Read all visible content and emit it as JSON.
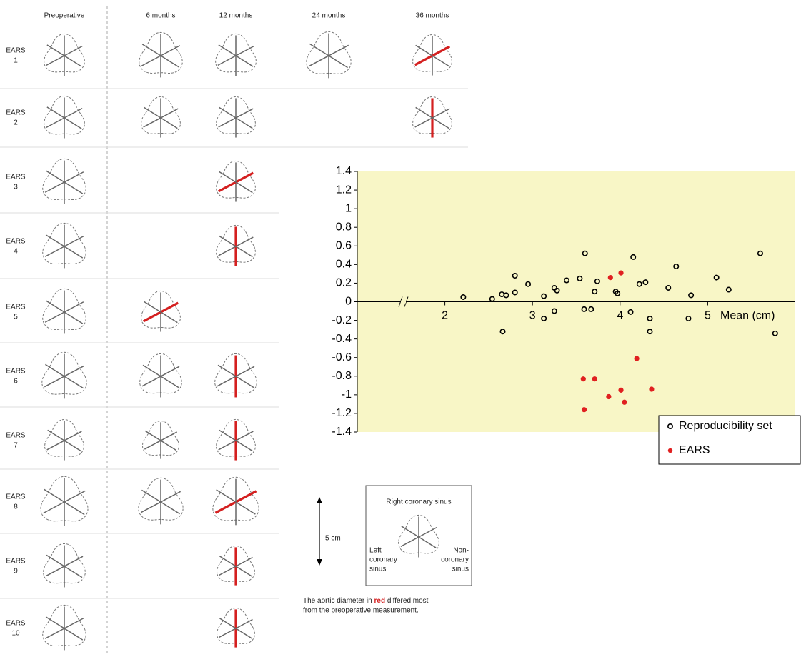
{
  "panel": {
    "columns": [
      "Preoperative",
      "6 months",
      "12 months",
      "24 months",
      "36 months"
    ],
    "rows": [
      {
        "name": "EARS",
        "number": "1"
      },
      {
        "name": "EARS",
        "number": "2"
      },
      {
        "name": "EARS",
        "number": "3"
      },
      {
        "name": "EARS",
        "number": "4"
      },
      {
        "name": "EARS",
        "number": "5"
      },
      {
        "name": "EARS",
        "number": "6"
      },
      {
        "name": "EARS",
        "number": "7"
      },
      {
        "name": "EARS",
        "number": "8"
      },
      {
        "name": "EARS",
        "number": "9"
      },
      {
        "name": "EARS",
        "number": "10"
      }
    ]
  },
  "key": {
    "scale": "5 cm",
    "top_label": "Right coronary sinus",
    "left_label": [
      "Left",
      "coronary",
      "sinus"
    ],
    "right_label": [
      "Non-",
      "coronary",
      "sinus"
    ],
    "caption_before": "The aortic diameter in ",
    "caption_highlight": "red",
    "caption_after": " differed most",
    "caption_line2": "from the preoperative measurement."
  },
  "chart_data": {
    "type": "scatter",
    "x_label": "Mean (cm)",
    "xlim": [
      1,
      6
    ],
    "xticks": [
      2,
      3,
      4,
      5
    ],
    "ylim": [
      -1.4,
      1.4
    ],
    "yticks": [
      1.4,
      1.2,
      1,
      0.8,
      0.6,
      0.4,
      0.2,
      0,
      -0.2,
      -0.4,
      -0.6,
      -0.8,
      -1,
      -1.2,
      -1.4
    ],
    "background": "#f8f6c6",
    "legend": "bottom-right",
    "series": [
      {
        "name": "Reproducibility set",
        "color": "#000000",
        "marker": "open",
        "x": [
          2.21,
          2.54,
          2.65,
          2.7,
          2.8,
          2.8,
          2.66,
          2.95,
          3.13,
          3.13,
          3.25,
          3.28,
          3.25,
          3.39,
          3.54,
          3.6,
          3.59,
          3.67,
          3.71,
          3.74,
          3.95,
          3.97,
          4.12,
          4.15,
          4.22,
          4.29,
          4.34,
          4.34,
          4.55,
          4.64,
          4.78,
          4.81,
          5.1,
          5.24,
          5.6,
          5.77
        ],
        "values": [
          0.05,
          0.03,
          0.08,
          0.07,
          0.1,
          0.28,
          -0.32,
          0.19,
          0.06,
          -0.18,
          0.15,
          0.12,
          -0.1,
          0.23,
          0.25,
          0.52,
          -0.08,
          -0.08,
          0.11,
          0.22,
          0.11,
          0.09,
          -0.11,
          0.48,
          0.19,
          0.21,
          -0.18,
          -0.32,
          0.15,
          0.38,
          -0.18,
          0.07,
          0.26,
          0.13,
          0.52,
          -0.34
        ]
      },
      {
        "name": "EARS",
        "color": "#e02020",
        "marker": "filled",
        "x": [
          3.89,
          4.01,
          4.19,
          3.58,
          3.71,
          3.87,
          4.01,
          4.05,
          4.36,
          3.59
        ],
        "values": [
          0.26,
          0.31,
          -0.61,
          -0.83,
          -0.83,
          -1.02,
          -0.95,
          -1.08,
          -0.94,
          -1.16
        ]
      }
    ]
  }
}
